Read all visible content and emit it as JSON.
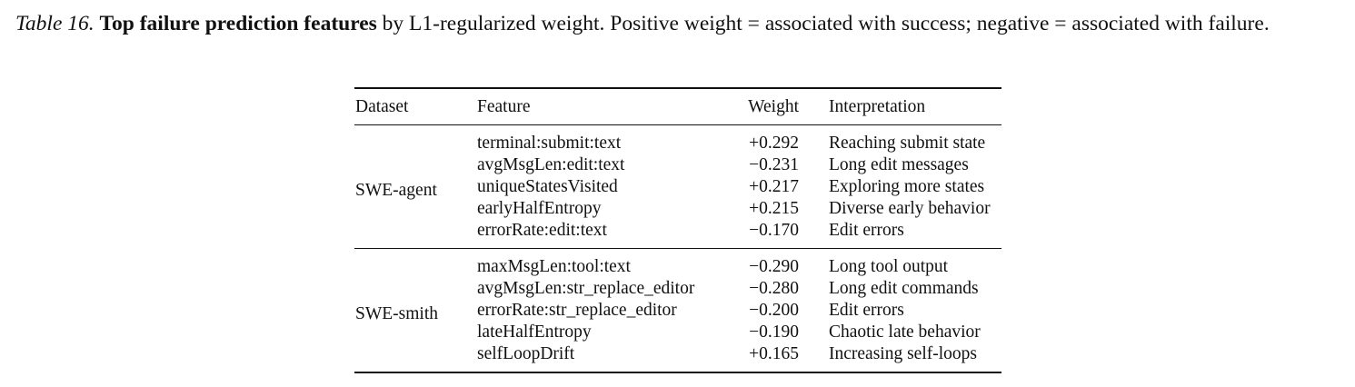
{
  "caption": {
    "label": "Table 16.",
    "title": "Top failure prediction features",
    "text": " by L1-regularized weight. Positive weight = associated with success; negative = associated with failure."
  },
  "table": {
    "headers": {
      "dataset": "Dataset",
      "feature": "Feature",
      "weight": "Weight",
      "interpretation": "Interpretation"
    },
    "groups": [
      {
        "dataset": "SWE-agent",
        "rows": [
          {
            "feature": "terminal:submit:text",
            "weight": "+0.292",
            "interpretation": "Reaching submit state"
          },
          {
            "feature": "avgMsgLen:edit:text",
            "weight": "−0.231",
            "interpretation": "Long edit messages"
          },
          {
            "feature": "uniqueStatesVisited",
            "weight": "+0.217",
            "interpretation": "Exploring more states"
          },
          {
            "feature": "earlyHalfEntropy",
            "weight": "+0.215",
            "interpretation": "Diverse early behavior"
          },
          {
            "feature": "errorRate:edit:text",
            "weight": "−0.170",
            "interpretation": "Edit errors"
          }
        ]
      },
      {
        "dataset": "SWE-smith",
        "rows": [
          {
            "feature": "maxMsgLen:tool:text",
            "weight": "−0.290",
            "interpretation": "Long tool output"
          },
          {
            "feature": "avgMsgLen:str_replace_editor",
            "weight": "−0.280",
            "interpretation": "Long edit commands"
          },
          {
            "feature": "errorRate:str_replace_editor",
            "weight": "−0.200",
            "interpretation": "Edit errors"
          },
          {
            "feature": "lateHalfEntropy",
            "weight": "−0.190",
            "interpretation": "Chaotic late behavior"
          },
          {
            "feature": "selfLoopDrift",
            "weight": "+0.165",
            "interpretation": "Increasing self-loops"
          }
        ]
      }
    ]
  }
}
